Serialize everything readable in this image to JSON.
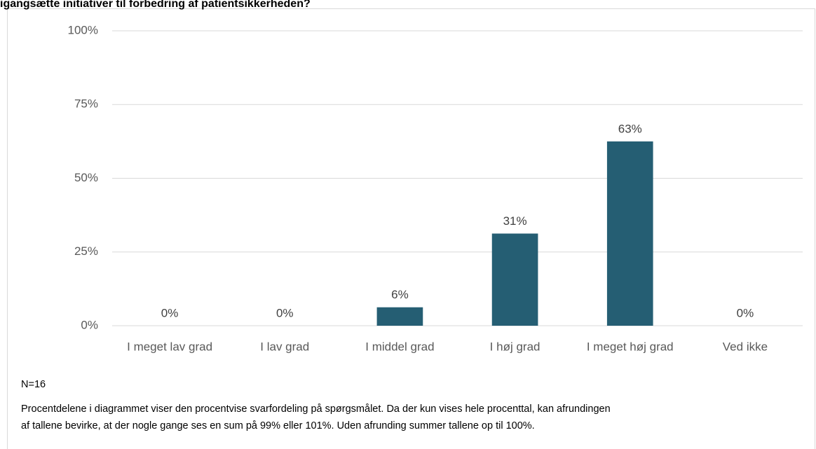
{
  "chart_data": {
    "type": "bar",
    "title": "igangsætte initiativer til forbedring af patientsikkerheden?",
    "categories": [
      "I meget lav grad",
      "I lav grad",
      "I middel grad",
      "I høj grad",
      "I meget høj grad",
      "Ved ikke"
    ],
    "values": [
      0,
      0,
      6.25,
      31.25,
      62.5,
      0
    ],
    "value_labels": [
      "0%",
      "0%",
      "6%",
      "31%",
      "63%",
      "0%"
    ],
    "color": "#255e73",
    "ylim": [
      0,
      100
    ],
    "yticks": [
      {
        "value": 0,
        "label": "0%"
      },
      {
        "value": 25,
        "label": "25%"
      },
      {
        "value": 50,
        "label": "50%"
      },
      {
        "value": 75,
        "label": "75%"
      },
      {
        "value": 100,
        "label": "100%"
      }
    ],
    "grid": true,
    "notes": [
      "N=16",
      "Procentdelene i diagrammet viser den procentvise svarfordeling på spørgsmålet. Da der kun vises hele procenttal, kan afrundingen",
      "af tallene bevirke, at der nogle gange ses en sum på 99% eller 101%. Uden afrunding summer tallene op til 100%."
    ]
  }
}
